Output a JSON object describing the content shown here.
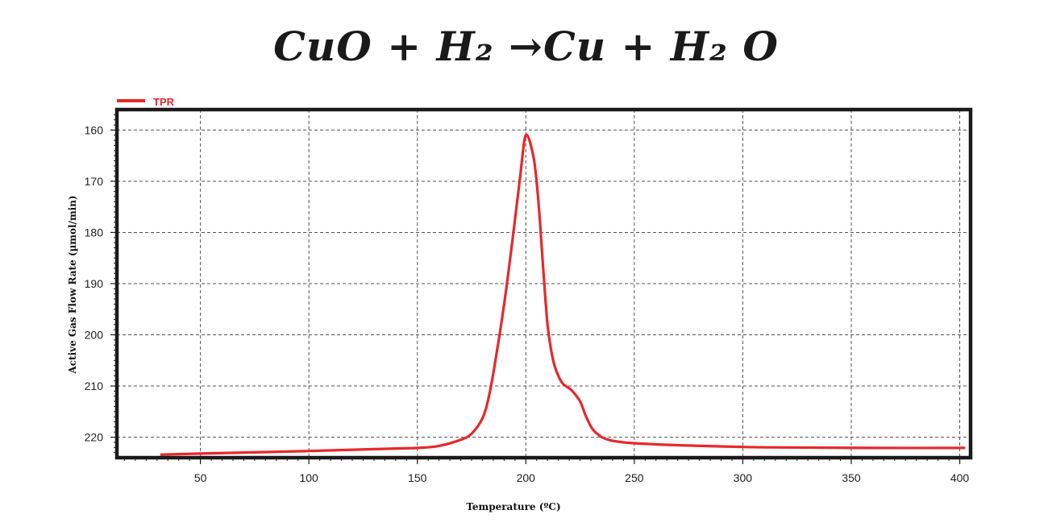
{
  "title": "CuO + H₂  →Cu + H₂ O",
  "colors": {
    "series": "#e8282b",
    "frame": "#1a1a1a",
    "grid": "#555555"
  },
  "chart_data": {
    "type": "line",
    "title": "CuO + H₂  →Cu + H₂ O",
    "xlabel": "Temperature (ºC)",
    "ylabel": "Active Gas Flow Rate (µmol/min)",
    "xlim": [
      11.5,
      405
    ],
    "ylim": [
      156,
      224
    ],
    "y_inverted": true,
    "grid": true,
    "legend_position": "top-left",
    "x_ticks": [
      50,
      100,
      150,
      200,
      250,
      300,
      350,
      400
    ],
    "y_ticks": [
      160,
      170,
      180,
      190,
      200,
      210,
      220
    ],
    "series": [
      {
        "name": "TPR",
        "x": [
          32,
          50,
          100,
          140,
          150,
          160,
          170,
          175,
          180,
          183,
          186,
          190,
          194,
          197,
          199,
          200,
          201,
          202,
          204,
          206,
          208,
          210,
          212,
          214,
          217,
          221,
          225,
          228,
          232,
          240,
          260,
          300,
          320,
          360,
          402
        ],
        "y": [
          223.4,
          223.2,
          222.7,
          222.2,
          222.1,
          221.7,
          220.5,
          219.3,
          216.3,
          212.0,
          205.0,
          194.0,
          181.0,
          170.5,
          163.0,
          161.0,
          161.3,
          162.5,
          166.5,
          175.0,
          187.0,
          198.0,
          203.8,
          207.0,
          209.5,
          210.8,
          213.0,
          216.2,
          219.0,
          220.7,
          221.4,
          221.9,
          222.0,
          222.1,
          222.1
        ]
      }
    ]
  }
}
